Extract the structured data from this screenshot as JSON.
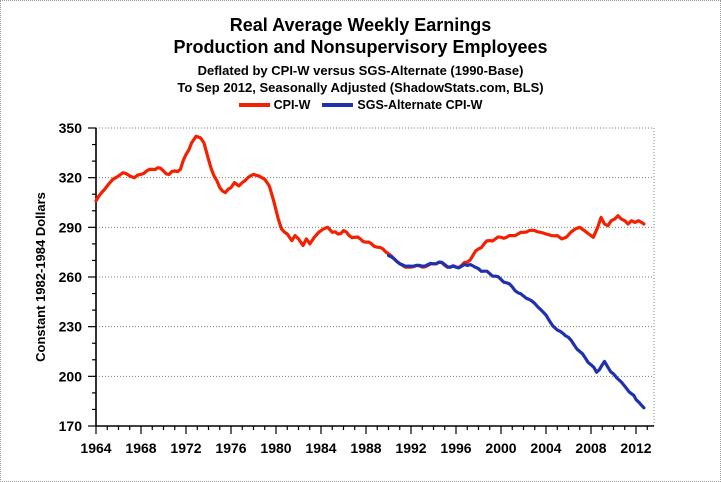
{
  "title": {
    "line1": "Real Average Weekly Earnings",
    "line2": "Production and Nonsupervisory Employees",
    "line3": "Deflated by CPI-W versus SGS-Alternate (1990-Base)",
    "line4": "To Sep 2012, Seasonally Adjusted (ShadowStats.com, BLS)"
  },
  "legend": [
    {
      "label": "CPI-W",
      "color": "#f42000"
    },
    {
      "label": "SGS-Alternate CPI-W",
      "color": "#2031b0"
    }
  ],
  "colors": {
    "cpi_w_line": "#f42000",
    "sgs_line": "#2031b0",
    "gridline": "#7f7f7f",
    "axis": "#000000",
    "background": "#ffffff"
  },
  "chart_data": {
    "type": "line",
    "title": "Real Average Weekly Earnings — Production and Nonsupervisory Employees",
    "subtitle": "Deflated by CPI-W versus SGS-Alternate (1990-Base); To Sep 2012, Seasonally Adjusted (ShadowStats.com, BLS)",
    "xlabel": "",
    "ylabel": "Constant 1982-1984 Dollars",
    "ylim": [
      170,
      350
    ],
    "xlim": [
      1964,
      2013.6
    ],
    "yticks": [
      170,
      200,
      230,
      260,
      290,
      320,
      350
    ],
    "xticks": [
      1964,
      1968,
      1972,
      1976,
      1980,
      1984,
      1988,
      1992,
      1996,
      2000,
      2004,
      2008,
      2012
    ],
    "grid": true,
    "legend_position": "top",
    "series": [
      {
        "name": "CPI-W",
        "color": "#f42000",
        "x": [
          1964.0,
          1964.5,
          1965.0,
          1965.5,
          1966.0,
          1966.4,
          1967.0,
          1967.4,
          1968.0,
          1968.5,
          1969.0,
          1969.5,
          1970.0,
          1970.5,
          1971.0,
          1971.5,
          1972.0,
          1972.5,
          1972.9,
          1973.3,
          1973.6,
          1974.0,
          1974.5,
          1975.0,
          1975.5,
          1976.0,
          1976.3,
          1976.7,
          1977.0,
          1977.5,
          1978.0,
          1978.5,
          1979.0,
          1979.4,
          1979.8,
          1980.2,
          1980.5,
          1981.0,
          1981.4,
          1981.7,
          1982.0,
          1982.4,
          1982.7,
          1983.0,
          1983.4,
          1983.8,
          1984.2,
          1984.6,
          1985.0,
          1985.5,
          1986.0,
          1986.5,
          1987.0,
          1987.5,
          1988.0,
          1988.5,
          1989.0,
          1989.5,
          1990.0,
          1990.5,
          1991.0,
          1991.5,
          1992.0,
          1992.5,
          1993.0,
          1993.5,
          1994.0,
          1994.5,
          1995.0,
          1995.5,
          1996.0,
          1996.5,
          1997.0,
          1997.5,
          1998.0,
          1998.5,
          1999.0,
          1999.5,
          2000.0,
          2000.5,
          2001.0,
          2001.5,
          2002.0,
          2002.5,
          2003.0,
          2003.5,
          2004.0,
          2004.5,
          2005.0,
          2005.4,
          2005.8,
          2006.2,
          2006.6,
          2007.0,
          2007.4,
          2007.8,
          2008.2,
          2008.6,
          2008.9,
          2009.2,
          2009.5,
          2009.8,
          2010.1,
          2010.4,
          2010.7,
          2011.0,
          2011.3,
          2011.6,
          2011.9,
          2012.2,
          2012.5,
          2012.7
        ],
        "y": [
          306,
          311,
          315,
          319,
          321,
          323,
          321,
          320,
          322,
          324,
          325,
          326,
          324,
          322,
          324,
          325,
          334,
          341,
          345,
          344,
          341,
          331,
          321,
          314,
          311,
          314,
          317,
          315,
          317,
          320,
          322,
          321,
          319,
          315,
          306,
          295,
          289,
          286,
          282,
          285,
          283,
          279,
          283,
          280,
          284,
          287,
          289,
          290,
          287,
          286,
          288,
          285,
          284,
          283,
          281,
          280,
          278,
          277,
          274,
          271,
          268,
          266,
          266,
          267,
          266,
          267,
          268,
          269,
          267,
          266,
          266,
          267,
          269,
          273,
          277,
          280,
          282,
          283,
          284,
          284,
          285,
          286,
          287,
          288,
          288,
          287,
          286,
          285,
          285,
          283,
          284,
          287,
          289,
          290,
          288,
          286,
          284,
          290,
          296,
          292,
          291,
          294,
          295,
          297,
          295,
          294,
          292,
          294,
          293,
          294,
          293,
          292
        ]
      },
      {
        "name": "SGS-Alternate CPI-W",
        "color": "#2031b0",
        "x": [
          1990.0,
          1990.5,
          1991.0,
          1991.5,
          1992.0,
          1992.5,
          1993.0,
          1993.5,
          1994.0,
          1994.5,
          1995.0,
          1995.5,
          1996.0,
          1996.5,
          1997.0,
          1997.3,
          1997.7,
          1998.0,
          1998.5,
          1999.0,
          1999.5,
          2000.0,
          2000.5,
          2001.0,
          2001.5,
          2002.0,
          2002.5,
          2003.0,
          2003.5,
          2004.0,
          2004.6,
          2005.0,
          2005.5,
          2006.0,
          2006.5,
          2007.0,
          2007.5,
          2008.0,
          2008.5,
          2009.0,
          2009.2,
          2009.5,
          2010.0,
          2010.3,
          2010.7,
          2011.0,
          2011.4,
          2011.8,
          2012.0,
          2012.3,
          2012.5,
          2012.7
        ],
        "y": [
          273,
          271,
          268,
          266.5,
          266.5,
          267,
          266.5,
          267.5,
          268,
          269,
          267.5,
          266,
          266,
          266.5,
          267,
          267.5,
          266,
          265,
          263.5,
          262,
          260.5,
          258.5,
          256.5,
          254,
          250.5,
          248.5,
          246.5,
          244,
          240.5,
          237,
          230.5,
          228,
          226,
          223.5,
          219,
          215,
          211,
          207,
          202.5,
          207,
          209,
          205.5,
          201.5,
          199,
          196.5,
          194,
          190.5,
          188.5,
          186,
          184,
          182.5,
          181
        ]
      }
    ]
  }
}
